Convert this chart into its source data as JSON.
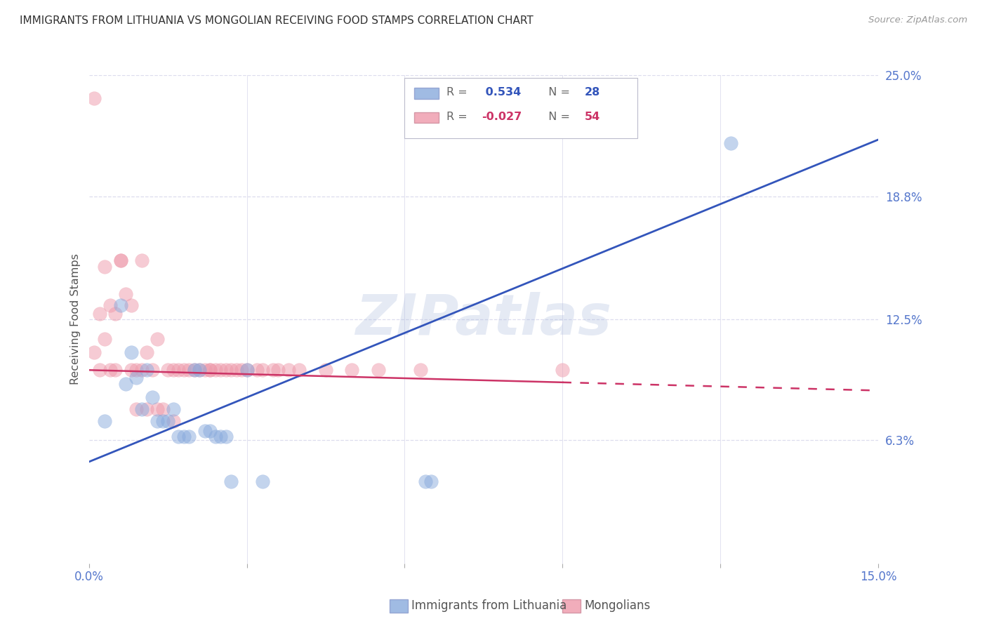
{
  "title": "IMMIGRANTS FROM LITHUANIA VS MONGOLIAN RECEIVING FOOD STAMPS CORRELATION CHART",
  "source": "Source: ZipAtlas.com",
  "ylabel": "Receiving Food Stamps",
  "xmin": 0.0,
  "xmax": 0.15,
  "ymin": 0.0,
  "ymax": 0.25,
  "xticks": [
    0.0,
    0.03,
    0.06,
    0.09,
    0.12,
    0.15
  ],
  "xticklabels": [
    "0.0%",
    "",
    "",
    "",
    "",
    "15.0%"
  ],
  "yticks_right": [
    0.063,
    0.125,
    0.188,
    0.25
  ],
  "ytick_labels_right": [
    "6.3%",
    "12.5%",
    "18.8%",
    "25.0%"
  ],
  "blue_color": "#88aadd",
  "pink_color": "#ee99aa",
  "blue_line_color": "#3355bb",
  "pink_line_color": "#cc3366",
  "watermark": "ZIPatlas",
  "blue_scatter_x": [
    0.003,
    0.006,
    0.007,
    0.008,
    0.009,
    0.01,
    0.011,
    0.012,
    0.013,
    0.014,
    0.015,
    0.016,
    0.017,
    0.018,
    0.019,
    0.02,
    0.021,
    0.022,
    0.023,
    0.024,
    0.025,
    0.026,
    0.027,
    0.03,
    0.033,
    0.064,
    0.065,
    0.122
  ],
  "blue_scatter_y": [
    0.073,
    0.132,
    0.092,
    0.108,
    0.095,
    0.079,
    0.099,
    0.085,
    0.073,
    0.073,
    0.073,
    0.079,
    0.065,
    0.065,
    0.065,
    0.099,
    0.099,
    0.068,
    0.068,
    0.065,
    0.065,
    0.065,
    0.042,
    0.099,
    0.042,
    0.042,
    0.042,
    0.215
  ],
  "pink_scatter_x": [
    0.001,
    0.001,
    0.002,
    0.002,
    0.003,
    0.003,
    0.004,
    0.004,
    0.005,
    0.005,
    0.006,
    0.006,
    0.007,
    0.008,
    0.008,
    0.009,
    0.009,
    0.01,
    0.01,
    0.011,
    0.011,
    0.012,
    0.013,
    0.013,
    0.014,
    0.015,
    0.016,
    0.016,
    0.017,
    0.018,
    0.019,
    0.02,
    0.021,
    0.022,
    0.023,
    0.023,
    0.024,
    0.025,
    0.026,
    0.027,
    0.028,
    0.029,
    0.03,
    0.032,
    0.033,
    0.035,
    0.036,
    0.038,
    0.04,
    0.045,
    0.05,
    0.055,
    0.063,
    0.09
  ],
  "pink_scatter_y": [
    0.238,
    0.108,
    0.128,
    0.099,
    0.152,
    0.115,
    0.099,
    0.132,
    0.099,
    0.128,
    0.155,
    0.155,
    0.138,
    0.132,
    0.099,
    0.099,
    0.079,
    0.155,
    0.099,
    0.108,
    0.079,
    0.099,
    0.115,
    0.079,
    0.079,
    0.099,
    0.073,
    0.099,
    0.099,
    0.099,
    0.099,
    0.099,
    0.099,
    0.099,
    0.099,
    0.099,
    0.099,
    0.099,
    0.099,
    0.099,
    0.099,
    0.099,
    0.099,
    0.099,
    0.099,
    0.099,
    0.099,
    0.099,
    0.099,
    0.099,
    0.099,
    0.099,
    0.099,
    0.099
  ],
  "background_color": "#ffffff",
  "grid_color": "#ddddee",
  "title_fontsize": 11,
  "tick_label_color": "#5577cc",
  "blue_line_intercept": 0.052,
  "blue_line_slope": 1.1,
  "pink_line_intercept": 0.099,
  "pink_line_slope": -0.07
}
